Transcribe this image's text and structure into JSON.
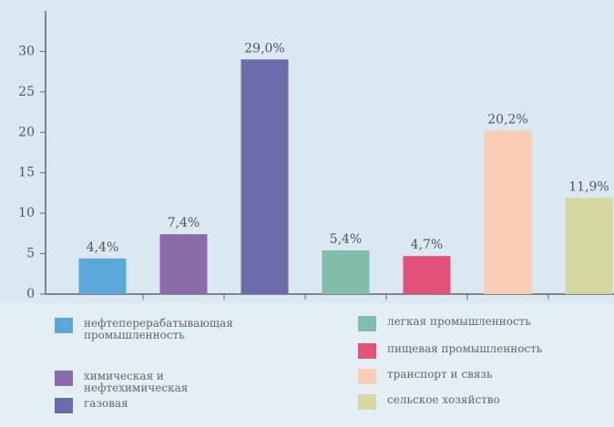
{
  "chart_data": {
    "type": "bar",
    "categories": [
      "нефтеперерабатывающая промышленность",
      "химическая и нефтехимическая",
      "газовая",
      "легкая промышленность",
      "пищевая промышленность",
      "транспорт и связь",
      "сельское хозяйство"
    ],
    "values": [
      4.4,
      7.4,
      29.0,
      5.4,
      4.7,
      20.2,
      11.9
    ],
    "value_labels": [
      "4,4%",
      "7,4%",
      "29,0%",
      "5,4%",
      "4,7%",
      "20,2%",
      "11,9%"
    ],
    "colors": [
      "#5ba7da",
      "#8b6aa9",
      "#6c6aa9",
      "#82bcab",
      "#e4527c",
      "#f8cdb6",
      "#d6d8a2"
    ],
    "ylim": [
      0,
      35
    ],
    "yticks": [
      0,
      5,
      10,
      15,
      20,
      25,
      30
    ]
  }
}
